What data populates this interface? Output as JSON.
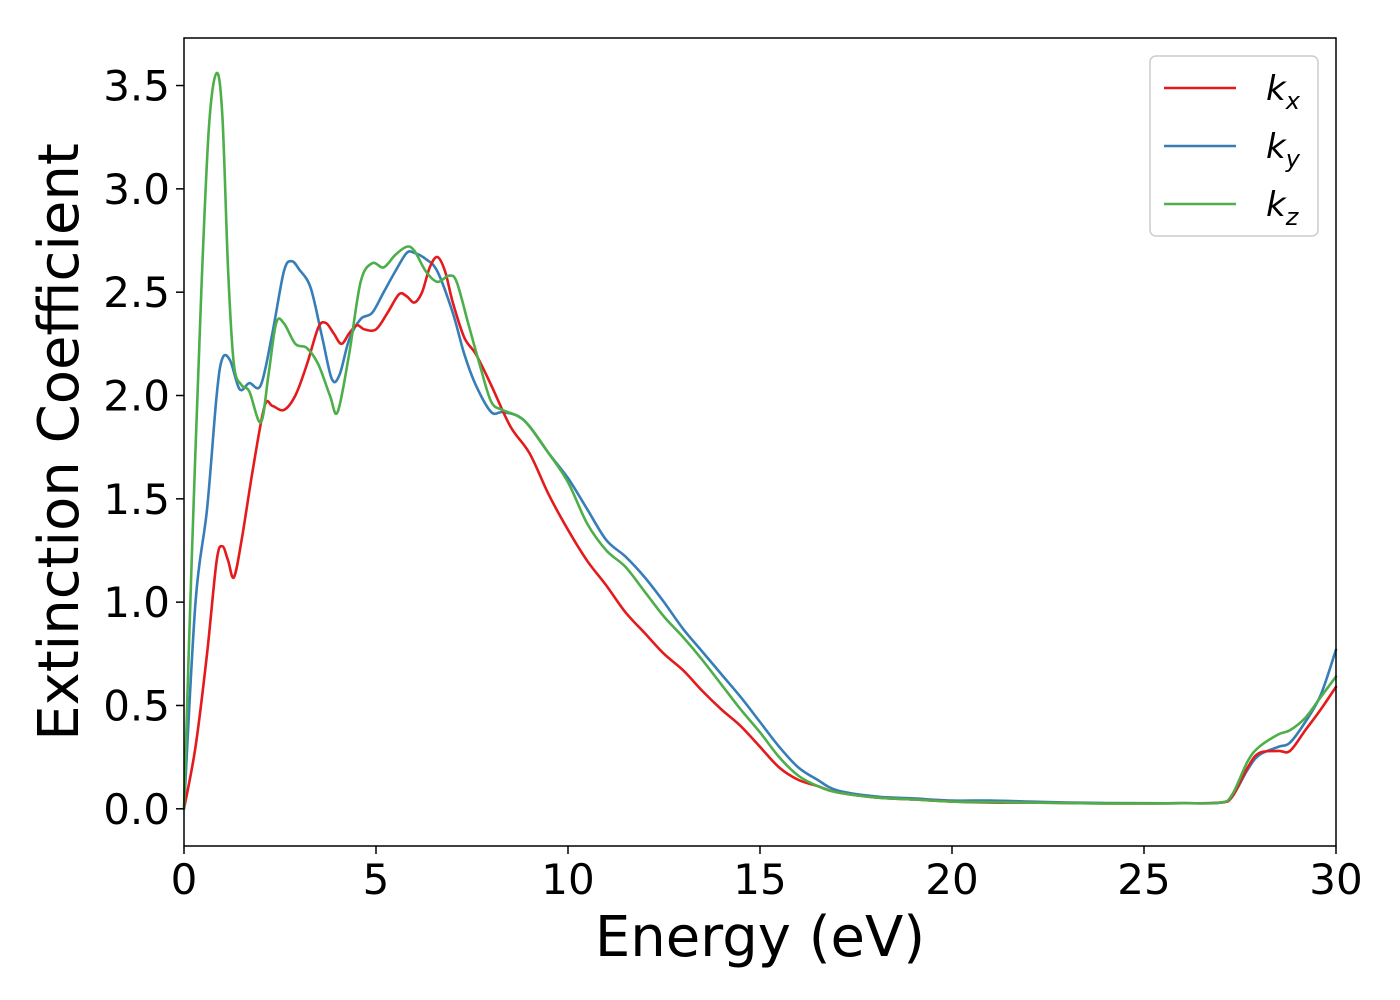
{
  "chart_data": {
    "type": "line",
    "xlabel": "Energy (eV)",
    "ylabel": "Extinction Coefficient",
    "xlim": [
      0,
      30
    ],
    "ylim": [
      -0.18,
      3.73
    ],
    "xticks": [
      0,
      5,
      10,
      15,
      20,
      25,
      30
    ],
    "xtick_labels": [
      "0",
      "5",
      "10",
      "15",
      "20",
      "25",
      "30"
    ],
    "yticks": [
      0.0,
      0.5,
      1.0,
      1.5,
      2.0,
      2.5,
      3.0,
      3.5
    ],
    "ytick_labels": [
      "0.0",
      "0.5",
      "1.0",
      "1.5",
      "2.0",
      "2.5",
      "3.0",
      "3.5"
    ],
    "grid": false,
    "legend_position": "top-right",
    "series": [
      {
        "name": "k",
        "subscript": "x",
        "color": "#e41a1c",
        "x": [
          0,
          0.3,
          0.6,
          0.85,
          1.0,
          1.15,
          1.3,
          1.5,
          1.8,
          2.1,
          2.3,
          2.6,
          2.9,
          3.2,
          3.5,
          3.7,
          3.9,
          4.1,
          4.3,
          4.5,
          4.7,
          5.0,
          5.3,
          5.6,
          5.8,
          6.0,
          6.2,
          6.4,
          6.6,
          6.8,
          7.0,
          7.3,
          7.6,
          8.0,
          8.5,
          9.0,
          9.5,
          10.0,
          10.5,
          11.0,
          11.5,
          12.0,
          12.5,
          13.0,
          13.5,
          14.0,
          14.5,
          15.0,
          15.5,
          16.0,
          16.5,
          17.0,
          18.0,
          19.0,
          20.0,
          21.0,
          22.0,
          23.0,
          24.0,
          25.0,
          26.0,
          27.0,
          27.3,
          27.7,
          28.0,
          28.5,
          28.8,
          29.2,
          29.6,
          30.0
        ],
        "y": [
          0.0,
          0.3,
          0.75,
          1.2,
          1.27,
          1.2,
          1.12,
          1.3,
          1.65,
          1.95,
          1.95,
          1.93,
          2.0,
          2.15,
          2.33,
          2.35,
          2.3,
          2.25,
          2.3,
          2.34,
          2.32,
          2.32,
          2.4,
          2.49,
          2.48,
          2.45,
          2.5,
          2.62,
          2.67,
          2.6,
          2.45,
          2.28,
          2.2,
          2.05,
          1.85,
          1.72,
          1.52,
          1.35,
          1.2,
          1.08,
          0.95,
          0.85,
          0.75,
          0.67,
          0.57,
          0.48,
          0.4,
          0.3,
          0.2,
          0.14,
          0.11,
          0.08,
          0.055,
          0.045,
          0.035,
          0.03,
          0.03,
          0.028,
          0.026,
          0.026,
          0.027,
          0.03,
          0.06,
          0.2,
          0.27,
          0.28,
          0.28,
          0.38,
          0.48,
          0.59
        ]
      },
      {
        "name": "k",
        "subscript": "y",
        "color": "#377eb8",
        "x": [
          0,
          0.3,
          0.6,
          0.85,
          1.0,
          1.2,
          1.45,
          1.7,
          2.0,
          2.3,
          2.6,
          2.8,
          3.0,
          3.3,
          3.6,
          3.85,
          4.05,
          4.3,
          4.6,
          4.9,
          5.2,
          5.5,
          5.8,
          6.0,
          6.3,
          6.6,
          7.0,
          7.3,
          7.6,
          8.0,
          8.3,
          8.7,
          9.0,
          9.5,
          10.0,
          10.5,
          11.0,
          11.5,
          12.0,
          12.5,
          13.0,
          13.5,
          14.0,
          14.5,
          15.0,
          15.5,
          16.0,
          16.5,
          17.0,
          18.0,
          19.0,
          20.0,
          21.0,
          22.0,
          23.0,
          24.0,
          25.0,
          26.0,
          27.0,
          27.3,
          27.7,
          28.0,
          28.5,
          28.8,
          29.2,
          29.6,
          30.0
        ],
        "y": [
          0.0,
          1.0,
          1.45,
          2.0,
          2.18,
          2.17,
          2.03,
          2.06,
          2.05,
          2.3,
          2.6,
          2.65,
          2.61,
          2.52,
          2.28,
          2.08,
          2.1,
          2.27,
          2.37,
          2.4,
          2.5,
          2.6,
          2.69,
          2.69,
          2.66,
          2.6,
          2.4,
          2.2,
          2.05,
          1.92,
          1.92,
          1.9,
          1.85,
          1.72,
          1.6,
          1.45,
          1.3,
          1.22,
          1.12,
          1.0,
          0.87,
          0.76,
          0.65,
          0.54,
          0.42,
          0.3,
          0.2,
          0.14,
          0.09,
          0.06,
          0.05,
          0.04,
          0.04,
          0.035,
          0.03,
          0.028,
          0.027,
          0.027,
          0.03,
          0.06,
          0.19,
          0.26,
          0.3,
          0.32,
          0.42,
          0.55,
          0.77
        ]
      },
      {
        "name": "k",
        "subscript": "z",
        "color": "#4daf4a",
        "x": [
          0,
          0.2,
          0.45,
          0.65,
          0.85,
          1.0,
          1.15,
          1.3,
          1.5,
          1.7,
          2.0,
          2.2,
          2.4,
          2.6,
          2.9,
          3.2,
          3.5,
          3.8,
          4.0,
          4.3,
          4.6,
          4.9,
          5.2,
          5.5,
          5.8,
          6.0,
          6.3,
          6.6,
          6.9,
          7.1,
          7.4,
          7.7,
          8.0,
          8.3,
          8.7,
          9.0,
          9.5,
          10.0,
          10.5,
          11.0,
          11.5,
          12.0,
          12.5,
          13.0,
          13.5,
          14.0,
          14.5,
          15.0,
          15.5,
          16.0,
          16.5,
          17.0,
          18.0,
          19.0,
          20.0,
          21.0,
          22.0,
          23.0,
          24.0,
          25.0,
          26.0,
          27.0,
          27.3,
          27.7,
          28.0,
          28.5,
          28.8,
          29.2,
          29.6,
          30.0
        ],
        "y": [
          0.0,
          1.2,
          2.5,
          3.3,
          3.56,
          3.35,
          2.6,
          2.15,
          2.05,
          2.02,
          1.87,
          2.1,
          2.35,
          2.35,
          2.25,
          2.23,
          2.15,
          2.0,
          1.92,
          2.2,
          2.55,
          2.64,
          2.62,
          2.68,
          2.72,
          2.7,
          2.6,
          2.55,
          2.58,
          2.55,
          2.35,
          2.15,
          1.97,
          1.93,
          1.9,
          1.85,
          1.72,
          1.58,
          1.38,
          1.25,
          1.17,
          1.05,
          0.93,
          0.83,
          0.72,
          0.6,
          0.48,
          0.37,
          0.25,
          0.16,
          0.11,
          0.08,
          0.055,
          0.045,
          0.035,
          0.032,
          0.03,
          0.028,
          0.026,
          0.026,
          0.027,
          0.03,
          0.07,
          0.23,
          0.3,
          0.36,
          0.38,
          0.44,
          0.54,
          0.64
        ]
      }
    ]
  }
}
